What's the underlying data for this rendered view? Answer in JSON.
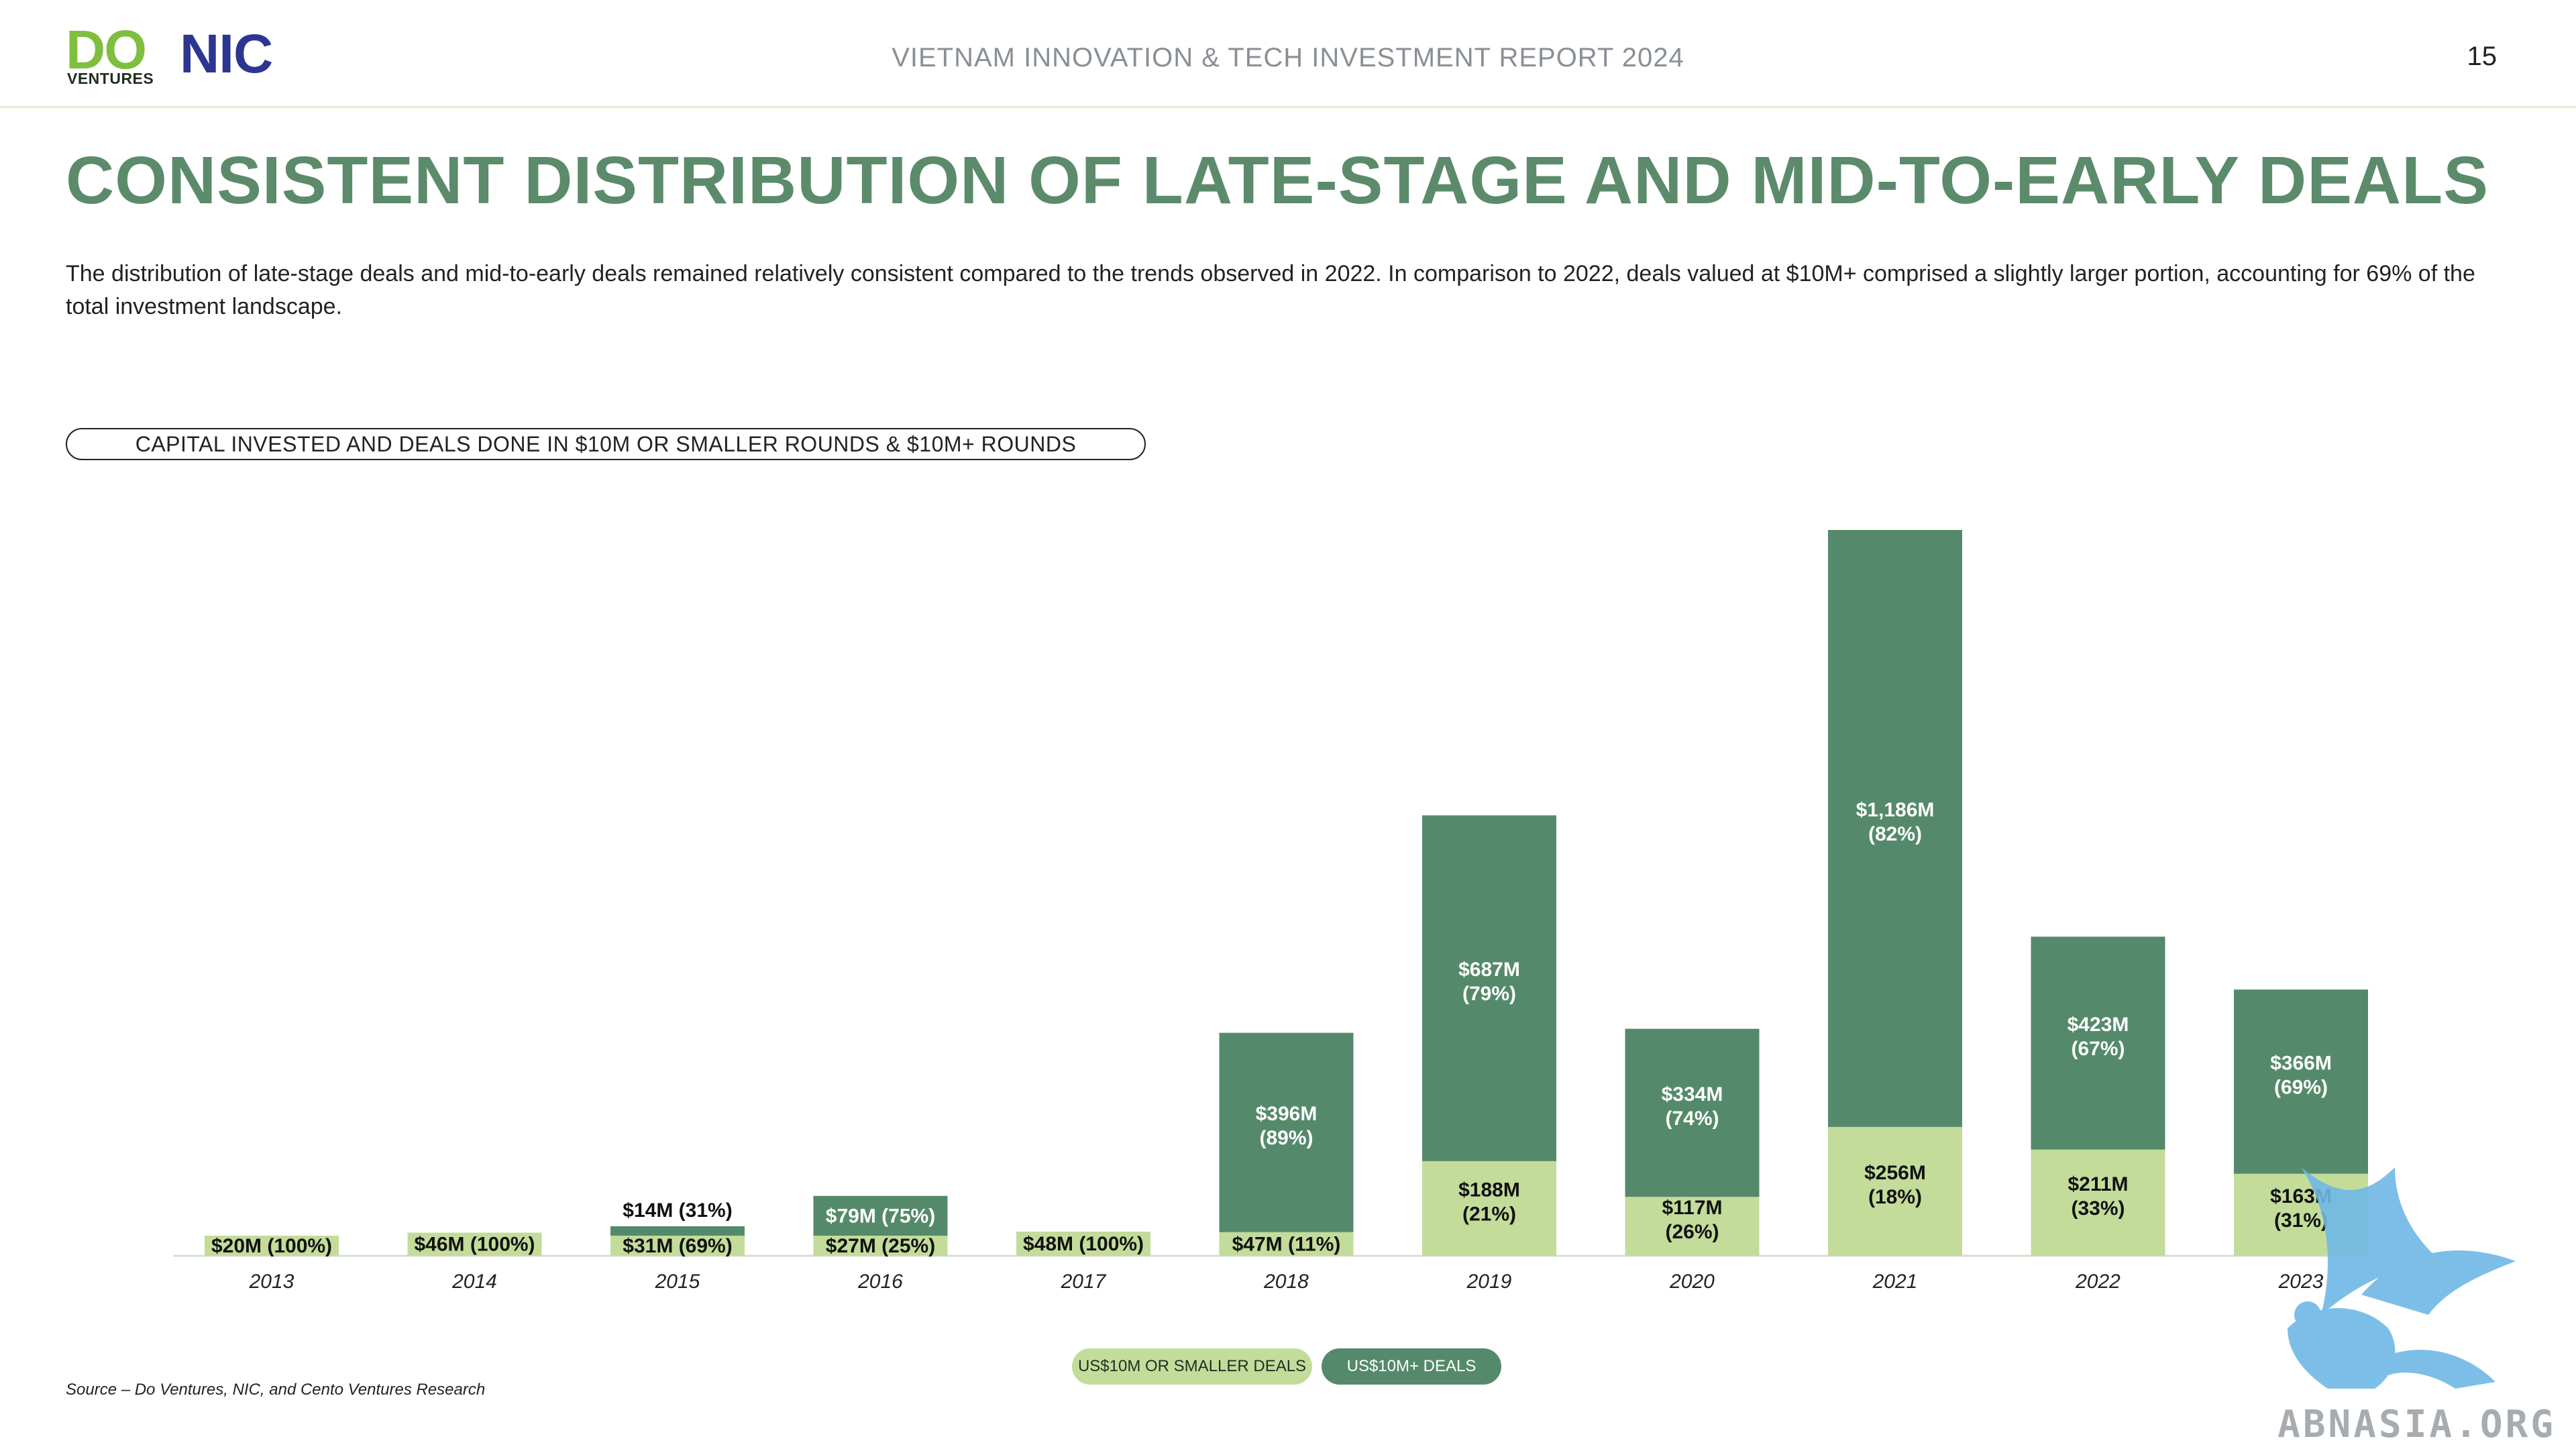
{
  "header": {
    "report_title": "VIETNAM INNOVATION & TECH INVESTMENT REPORT 2024",
    "page_number": "15",
    "logo_do": "DO",
    "logo_do_sub": "VENTURES",
    "logo_nic": "NIC"
  },
  "main": {
    "title": "CONSISTENT DISTRIBUTION OF LATE-STAGE AND MID-TO-EARLY DEALS",
    "description": "The distribution of late-stage deals and mid-to-early deals remained relatively consistent compared to the trends observed in 2022. In comparison to 2022, deals valued at $10M+ comprised a slightly larger portion, accounting for 69% of the total investment landscape.",
    "chart_pill": "CAPITAL INVESTED AND DEALS DONE IN $10M OR SMALLER ROUNDS & $10M+ ROUNDS"
  },
  "legend": {
    "small": "US$10M OR SMALLER DEALS",
    "large": "US$10M+ DEALS"
  },
  "source": "Source – Do Ventures, NIC, and Cento Ventures Research",
  "watermark": "ABNASIA.ORG",
  "colors": {
    "small": "#c3dc9a",
    "large": "#548a6b",
    "title": "#5b8b6b"
  },
  "chart_data": {
    "type": "bar",
    "stacked": true,
    "categories": [
      "2013",
      "2014",
      "2015",
      "2016",
      "2017",
      "2018",
      "2019",
      "2020",
      "2021",
      "2022",
      "2023"
    ],
    "series": [
      {
        "name": "US$10M OR SMALLER DEALS",
        "values": [
          20,
          46,
          31,
          27,
          48,
          47,
          188,
          117,
          256,
          211,
          163
        ],
        "labels": [
          "$20M (100%)",
          "$46M (100%)",
          "$31M (69%)",
          "$27M (25%)",
          "$48M (100%)",
          "$47M (11%)",
          "$188M (21%)",
          "$117M (26%)",
          "$256M (18%)",
          "$211M (33%)",
          "$163M (31%)"
        ]
      },
      {
        "name": "US$10M+ DEALS",
        "values": [
          0,
          0,
          14,
          79,
          0,
          396,
          687,
          334,
          1186,
          423,
          366
        ],
        "labels": [
          "",
          "",
          "$14M (31%)",
          "$79M (75%)",
          "",
          "$396M (89%)",
          "$687M (79%)",
          "$334M (74%)",
          "$1,186M (82%)",
          "$423M (67%)",
          "$366M (69%)"
        ]
      }
    ],
    "ylim": [
      0,
      1442
    ],
    "xlabel": "",
    "ylabel": "",
    "grid": false,
    "legend_position": "bottom-center"
  }
}
